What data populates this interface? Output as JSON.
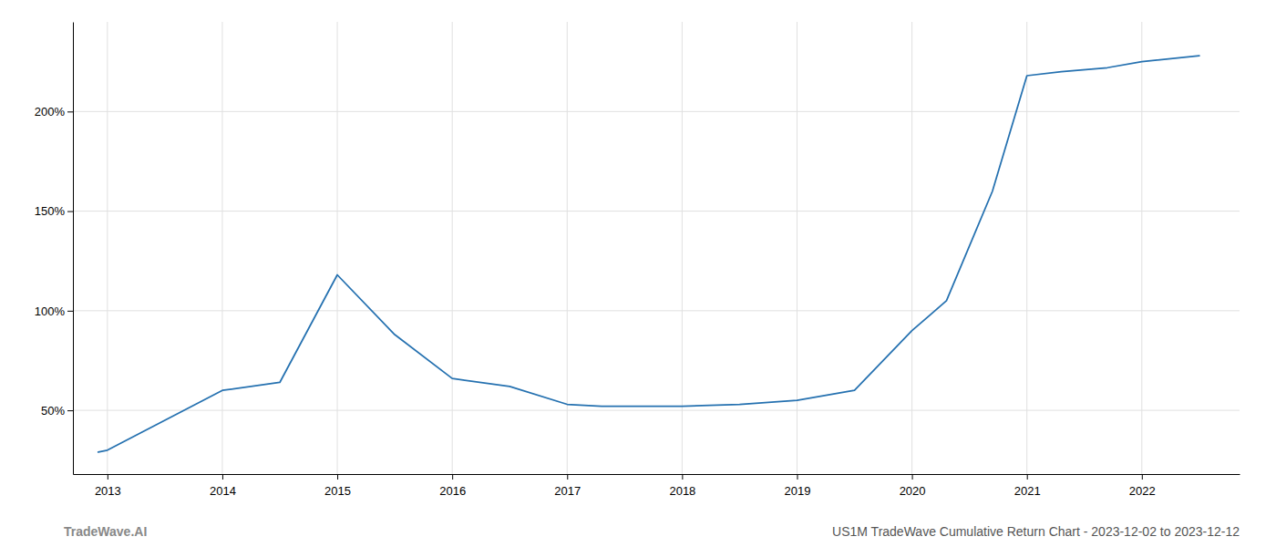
{
  "chart_data": {
    "type": "line",
    "x": [
      2012.92,
      2013.0,
      2013.5,
      2014.0,
      2014.5,
      2015.0,
      2015.5,
      2016.0,
      2016.5,
      2017.0,
      2017.3,
      2017.7,
      2018.0,
      2018.5,
      2019.0,
      2019.5,
      2020.0,
      2020.3,
      2020.7,
      2021.0,
      2021.3,
      2021.7,
      2022.0,
      2022.5
    ],
    "values": [
      29,
      30,
      45,
      60,
      64,
      118,
      88,
      66,
      62,
      53,
      52,
      52,
      52,
      53,
      55,
      60,
      90,
      105,
      160,
      218,
      220,
      222,
      225,
      228
    ],
    "color": "#2571b0",
    "xlim": [
      2012.7,
      2022.85
    ],
    "xticks": [
      2013,
      2014,
      2015,
      2016,
      2017,
      2018,
      2019,
      2020,
      2021,
      2022
    ],
    "ylim": [
      18,
      245
    ],
    "yticks": [
      {
        "value": 50,
        "label": "50%"
      },
      {
        "value": 100,
        "label": "100%"
      },
      {
        "value": 150,
        "label": "150%"
      },
      {
        "value": 200,
        "label": "200%"
      }
    ],
    "grid": true,
    "annotations": [
      "TradeWave.AI",
      "US1M TradeWave Cumulative Return Chart - 2023-12-02 to 2023-12-12"
    ]
  }
}
